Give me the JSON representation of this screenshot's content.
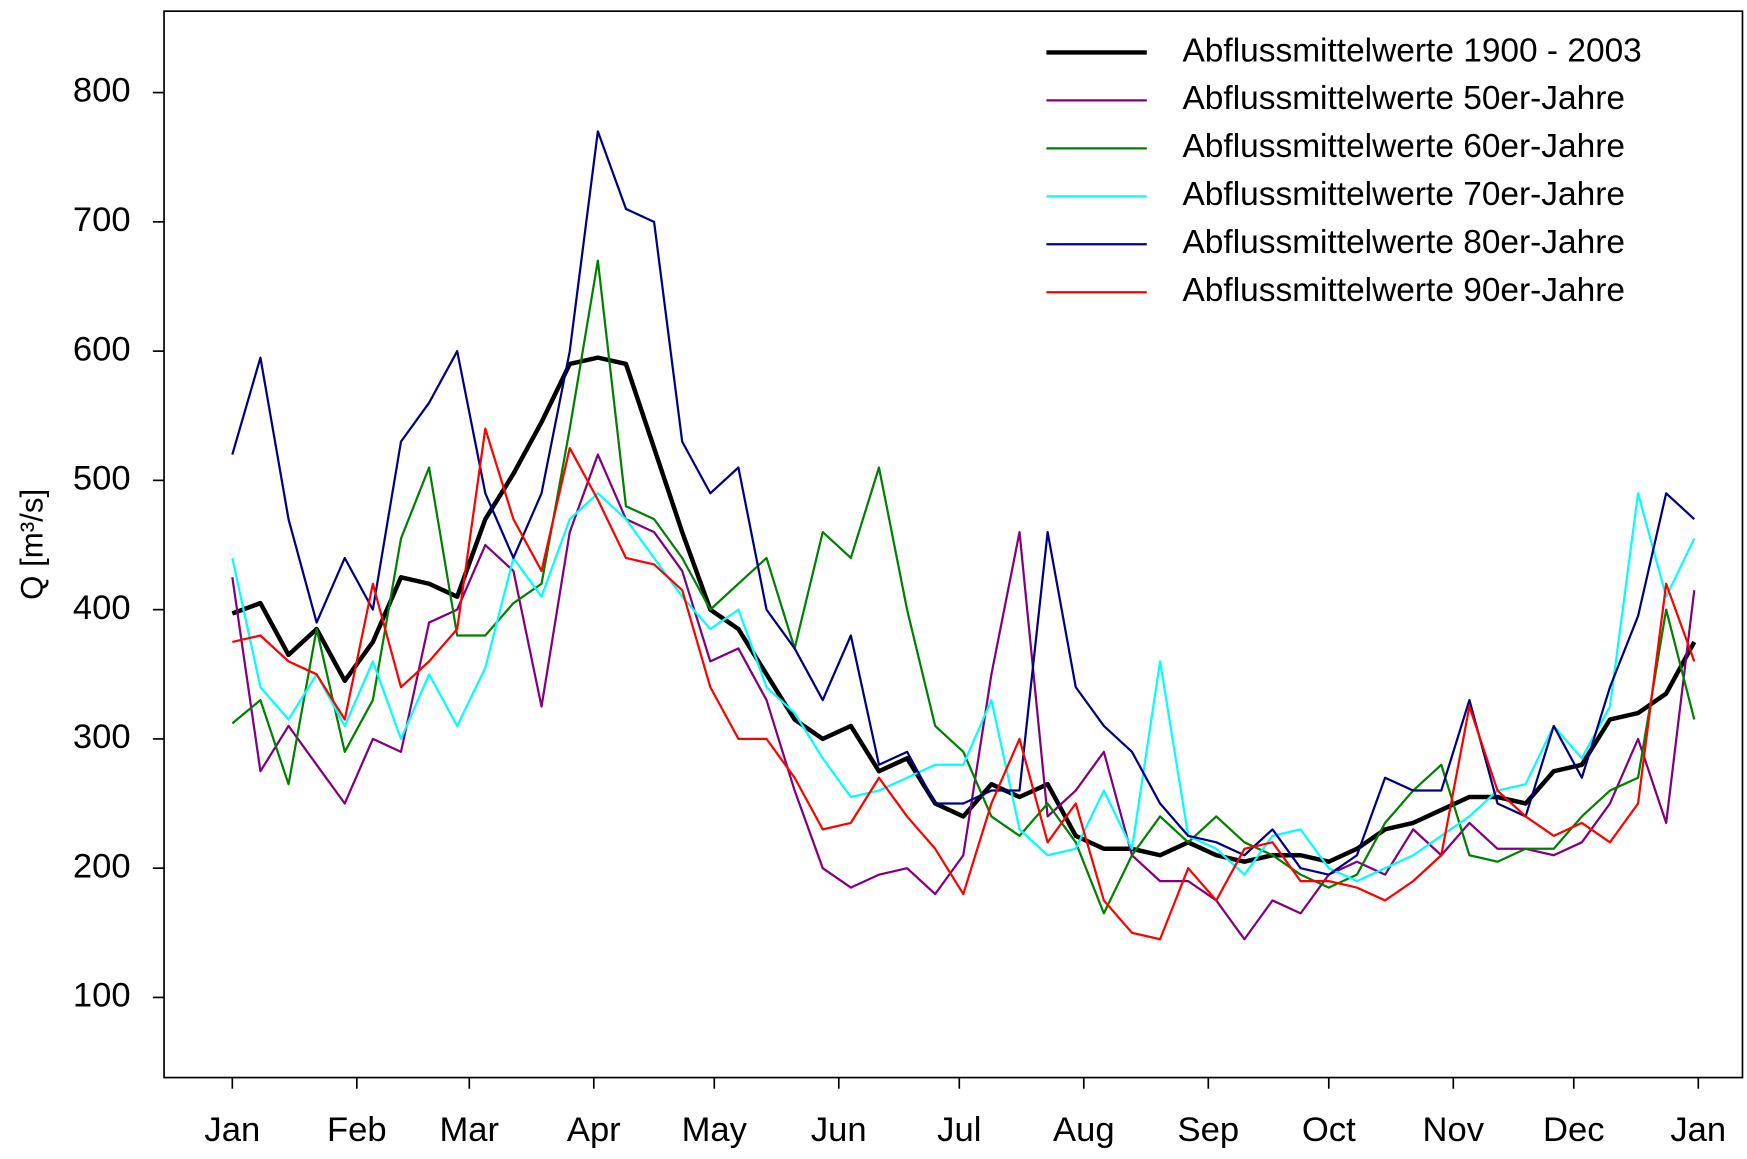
{
  "chart_data": {
    "type": "line",
    "ylabel": "Q [m³/s]",
    "x": [
      0,
      7,
      14,
      21,
      28,
      35,
      42,
      49,
      56,
      63,
      70,
      77,
      84,
      91,
      98,
      105,
      112,
      119,
      126,
      133,
      140,
      147,
      154,
      161,
      168,
      175,
      182,
      189,
      196,
      203,
      210,
      217,
      224,
      231,
      238,
      245,
      252,
      259,
      266,
      273,
      280,
      287,
      294,
      301,
      308,
      315,
      322,
      329,
      336,
      343,
      350,
      357,
      364
    ],
    "xlim": [
      -17,
      376
    ],
    "xticks": [
      {
        "value": 0,
        "label": "Jan"
      },
      {
        "value": 31,
        "label": "Feb"
      },
      {
        "value": 59,
        "label": "Mar"
      },
      {
        "value": 90,
        "label": "Apr"
      },
      {
        "value": 120,
        "label": "May"
      },
      {
        "value": 151,
        "label": "Jun"
      },
      {
        "value": 181,
        "label": "Jul"
      },
      {
        "value": 212,
        "label": "Aug"
      },
      {
        "value": 243,
        "label": "Sep"
      },
      {
        "value": 273,
        "label": "Oct"
      },
      {
        "value": 304,
        "label": "Nov"
      },
      {
        "value": 334,
        "label": "Dec"
      },
      {
        "value": 365,
        "label": "Jan"
      }
    ],
    "ylim": [
      38,
      863
    ],
    "yticks": [
      100,
      200,
      300,
      400,
      500,
      600,
      700,
      800
    ],
    "legend": "upper right",
    "series": [
      {
        "name": "Abflussmittelwerte 1900 - 2003",
        "color": "#000000",
        "linewidth": 4,
        "values": [
          397,
          405,
          365,
          385,
          345,
          375,
          425,
          420,
          410,
          470,
          505,
          545,
          590,
          595,
          590,
          525,
          460,
          400,
          385,
          350,
          315,
          300,
          310,
          275,
          285,
          250,
          240,
          265,
          255,
          265,
          225,
          215,
          215,
          210,
          220,
          210,
          205,
          210,
          210,
          205,
          215,
          230,
          235,
          245,
          255,
          255,
          250,
          275,
          280,
          315,
          320,
          335,
          375
        ]
      },
      {
        "name": "Abflussmittelwerte 50er-Jahre",
        "color": "#800080",
        "linewidth": 2,
        "values": [
          425,
          275,
          310,
          280,
          250,
          300,
          290,
          390,
          400,
          450,
          430,
          325,
          460,
          520,
          470,
          460,
          430,
          360,
          370,
          330,
          260,
          200,
          185,
          195,
          200,
          180,
          210,
          350,
          460,
          240,
          260,
          290,
          210,
          190,
          190,
          175,
          145,
          175,
          165,
          195,
          205,
          195,
          230,
          210,
          235,
          215,
          215,
          210,
          220,
          250,
          300,
          235,
          415
        ]
      },
      {
        "name": "Abflussmittelwerte 60er-Jahre",
        "color": "#008000",
        "linewidth": 2,
        "values": [
          312,
          330,
          265,
          385,
          290,
          330,
          455,
          510,
          380,
          380,
          405,
          420,
          540,
          670,
          480,
          470,
          440,
          400,
          420,
          440,
          370,
          460,
          440,
          510,
          400,
          310,
          290,
          240,
          225,
          250,
          220,
          165,
          210,
          240,
          220,
          240,
          220,
          210,
          195,
          185,
          195,
          235,
          260,
          280,
          210,
          205,
          215,
          215,
          240,
          260,
          270,
          400,
          315
        ]
      },
      {
        "name": "Abflussmittelwerte 70er-Jahre",
        "color": "#00ffff",
        "linewidth": 2,
        "values": [
          440,
          340,
          315,
          350,
          310,
          360,
          300,
          350,
          310,
          355,
          440,
          410,
          470,
          490,
          470,
          440,
          410,
          385,
          400,
          340,
          320,
          285,
          255,
          260,
          270,
          280,
          280,
          330,
          230,
          210,
          215,
          260,
          215,
          360,
          225,
          215,
          195,
          225,
          230,
          200,
          190,
          200,
          210,
          225,
          240,
          260,
          265,
          310,
          285,
          325,
          490,
          410,
          455
        ]
      },
      {
        "name": "Abflussmittelwerte 80er-Jahre",
        "color": "#000080",
        "linewidth": 2,
        "values": [
          520,
          595,
          470,
          390,
          440,
          400,
          530,
          560,
          600,
          490,
          440,
          490,
          600,
          770,
          710,
          700,
          530,
          490,
          510,
          400,
          370,
          330,
          380,
          280,
          290,
          250,
          250,
          260,
          260,
          460,
          340,
          310,
          290,
          250,
          225,
          220,
          210,
          230,
          200,
          195,
          210,
          270,
          260,
          260,
          330,
          250,
          240,
          310,
          270,
          340,
          395,
          490,
          470
        ]
      },
      {
        "name": "Abflussmittelwerte 90er-Jahre",
        "color": "#ff0000",
        "linewidth": 2,
        "values": [
          375,
          380,
          360,
          350,
          315,
          420,
          340,
          360,
          385,
          540,
          470,
          430,
          525,
          485,
          440,
          435,
          415,
          340,
          300,
          300,
          270,
          230,
          235,
          270,
          240,
          215,
          180,
          250,
          300,
          220,
          250,
          175,
          150,
          145,
          200,
          175,
          215,
          220,
          190,
          190,
          185,
          175,
          190,
          210,
          325,
          260,
          240,
          225,
          235,
          220,
          250,
          420,
          360
        ]
      }
    ]
  }
}
